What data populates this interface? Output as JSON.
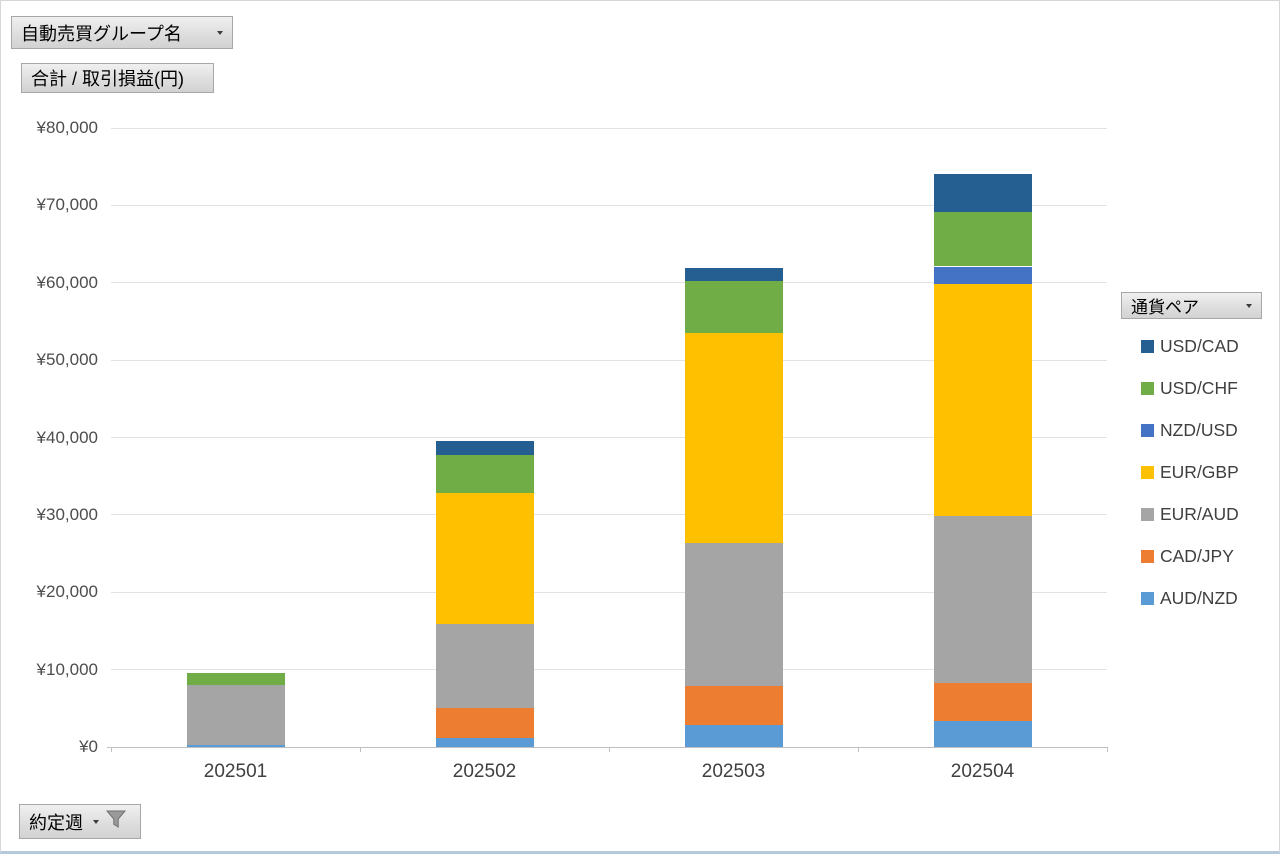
{
  "field_buttons": {
    "group_name": {
      "label": "自動売買グループ名",
      "has_dropdown": true
    },
    "value_field": {
      "label": "合計 / 取引損益(円)"
    },
    "legend_field": {
      "label": "通貨ペア",
      "has_dropdown": true
    },
    "axis_field": {
      "label": "約定週",
      "has_dropdown": true,
      "has_filter": true
    }
  },
  "chart_data": {
    "type": "bar",
    "stacked": true,
    "grid": "horizontal",
    "legend_position": "right",
    "xlabel": "約定週",
    "ylabel": "合計 / 取引損益(円)",
    "ylim": [
      0,
      80000
    ],
    "ytick_step": 10000,
    "ytick_labels_top_to_bottom": [
      "¥80,000",
      "¥70,000",
      "¥60,000",
      "¥50,000",
      "¥40,000",
      "¥30,000",
      "¥20,000",
      "¥10,000",
      "¥0"
    ],
    "categories": [
      "202501",
      "202502",
      "202503",
      "202504"
    ],
    "series_bottom_to_top": [
      {
        "name": "AUD/NZD",
        "color": "#5B9BD5",
        "values": [
          300,
          1200,
          2900,
          3300
        ]
      },
      {
        "name": "CAD/JPY",
        "color": "#ED7D31",
        "values": [
          0,
          3900,
          5000,
          5000
        ]
      },
      {
        "name": "EUR/AUD",
        "color": "#A5A5A5",
        "values": [
          7700,
          10800,
          18500,
          21500
        ]
      },
      {
        "name": "EUR/GBP",
        "color": "#FFC000",
        "values": [
          0,
          16900,
          27100,
          30000
        ]
      },
      {
        "name": "NZD/USD",
        "color": "#4472C4",
        "values": [
          0,
          0,
          0,
          2300
        ]
      },
      {
        "name": "USD/CHF",
        "color": "#70AD47",
        "values": [
          1500,
          4900,
          6700,
          7000
        ]
      },
      {
        "name": "USD/CAD",
        "color": "#255E91",
        "values": [
          0,
          1800,
          1700,
          4900
        ]
      }
    ],
    "legend_top_to_bottom": [
      "USD/CAD",
      "USD/CHF",
      "NZD/USD",
      "EUR/GBP",
      "EUR/AUD",
      "CAD/JPY",
      "AUD/NZD"
    ]
  }
}
